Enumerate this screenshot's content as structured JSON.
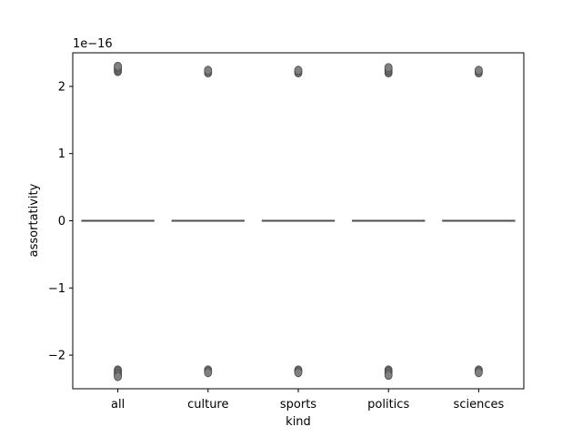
{
  "chart_data": {
    "type": "box",
    "xlabel": "kind",
    "ylabel": "assortativity",
    "y_multiplier": "1e−16",
    "categories": [
      "all",
      "culture",
      "sports",
      "politics",
      "sciences"
    ],
    "ylim": [
      -2.5,
      2.5
    ],
    "yticks": [
      -2,
      -1,
      0,
      1,
      2
    ],
    "ytick_labels": [
      "−2",
      "−1",
      "0",
      "1",
      "2"
    ],
    "grid": false,
    "box_color": "#808080",
    "boxes": [
      {
        "category": "all",
        "median": 0,
        "q1": 0,
        "q3": 0,
        "whisker_low": 0,
        "whisker_high": 0,
        "outliers": [
          2.22,
          2.24,
          2.26,
          2.28,
          2.3,
          -2.22,
          -2.24,
          -2.26,
          -2.28,
          -2.3,
          -2.32
        ]
      },
      {
        "category": "culture",
        "median": 0,
        "q1": 0,
        "q3": 0,
        "whisker_low": 0,
        "whisker_high": 0,
        "outliers": [
          2.2,
          2.22,
          2.24,
          -2.22,
          -2.24,
          -2.26
        ]
      },
      {
        "category": "sports",
        "median": 0,
        "q1": 0,
        "q3": 0,
        "whisker_low": 0,
        "whisker_high": 0,
        "outliers": [
          2.2,
          2.22,
          2.24,
          -2.22,
          -2.24,
          -2.26
        ]
      },
      {
        "category": "politics",
        "median": 0,
        "q1": 0,
        "q3": 0,
        "whisker_low": 0,
        "whisker_high": 0,
        "outliers": [
          2.2,
          2.22,
          2.24,
          2.26,
          2.28,
          -2.22,
          -2.24,
          -2.26,
          -2.28,
          -2.3
        ]
      },
      {
        "category": "sciences",
        "median": 0,
        "q1": 0,
        "q3": 0,
        "whisker_low": 0,
        "whisker_high": 0,
        "outliers": [
          2.2,
          2.22,
          2.24,
          -2.22,
          -2.24,
          -2.26
        ]
      }
    ]
  }
}
